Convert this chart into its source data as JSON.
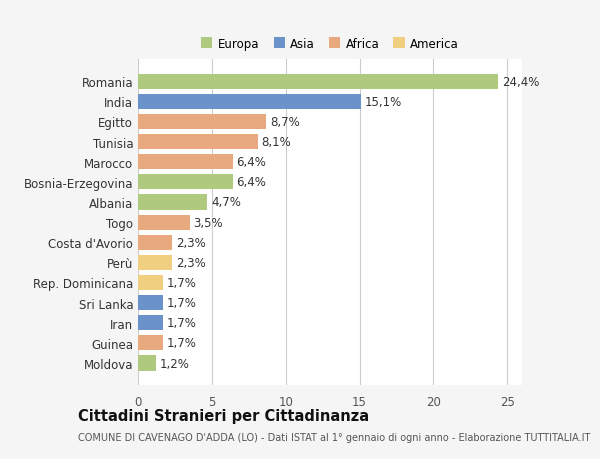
{
  "countries": [
    "Romania",
    "India",
    "Egitto",
    "Tunisia",
    "Marocco",
    "Bosnia-Erzegovina",
    "Albania",
    "Togo",
    "Costa d'Avorio",
    "Perù",
    "Rep. Dominicana",
    "Sri Lanka",
    "Iran",
    "Guinea",
    "Moldova"
  ],
  "values": [
    24.4,
    15.1,
    8.7,
    8.1,
    6.4,
    6.4,
    4.7,
    3.5,
    2.3,
    2.3,
    1.7,
    1.7,
    1.7,
    1.7,
    1.2
  ],
  "labels": [
    "24,4%",
    "15,1%",
    "8,7%",
    "8,1%",
    "6,4%",
    "6,4%",
    "4,7%",
    "3,5%",
    "2,3%",
    "2,3%",
    "1,7%",
    "1,7%",
    "1,7%",
    "1,7%",
    "1,2%"
  ],
  "colors": [
    "#afc97e",
    "#6b93c9",
    "#e8a97e",
    "#e8a97e",
    "#e8a97e",
    "#afc97e",
    "#afc97e",
    "#e8a97e",
    "#e8a97e",
    "#f0d080",
    "#f0d080",
    "#6b93c9",
    "#6b93c9",
    "#e8a97e",
    "#afc97e"
  ],
  "continent_colors": {
    "Europa": "#afc97e",
    "Asia": "#6b93c9",
    "Africa": "#e8a97e",
    "America": "#f0d080"
  },
  "title": "Cittadini Stranieri per Cittadinanza",
  "subtitle": "COMUNE DI CAVENAGO D'ADDA (LO) - Dati ISTAT al 1° gennaio di ogni anno - Elaborazione TUTTITALIA.IT",
  "xlim": [
    0,
    26
  ],
  "xticks": [
    0,
    5,
    10,
    15,
    20,
    25
  ],
  "bg_color": "#f5f5f5",
  "bar_bg": "#ffffff",
  "grid_color": "#cccccc",
  "bar_height": 0.75,
  "label_fontsize": 8.5,
  "title_fontsize": 10.5,
  "subtitle_fontsize": 7.0,
  "legend_fontsize": 8.5
}
